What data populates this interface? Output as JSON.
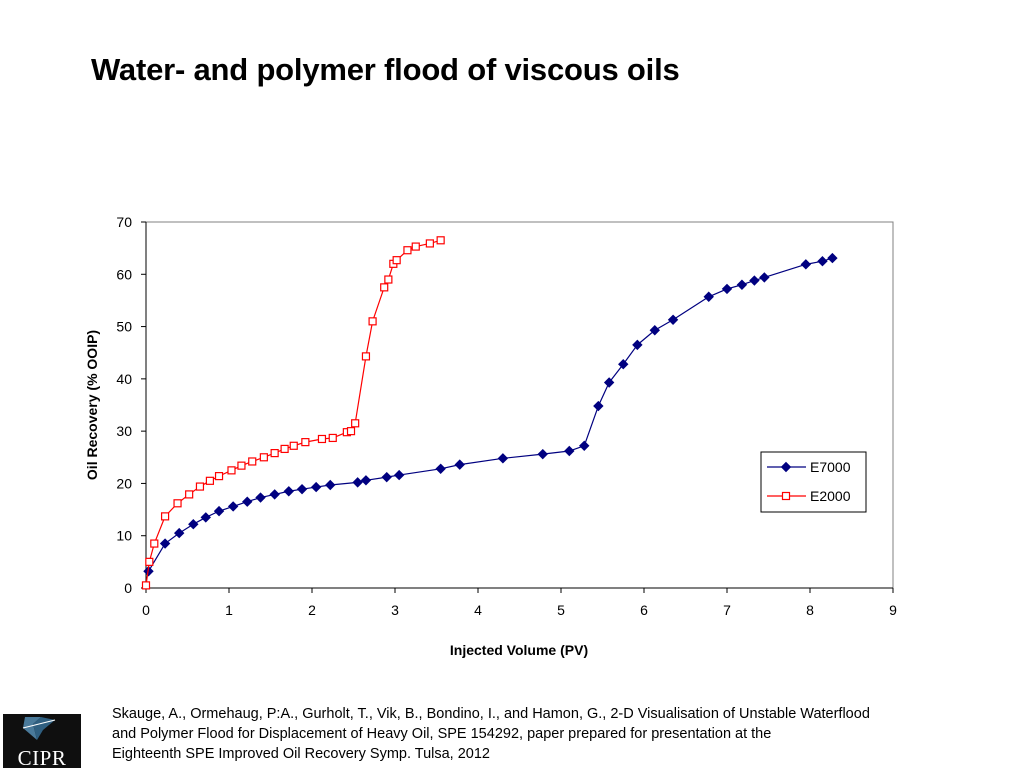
{
  "slide": {
    "title": "Water- and polymer flood of viscous oils"
  },
  "citation": {
    "lines": [
      "Skauge, A., Ormehaug, P:A., Gurholt, T., Vik, B., Bondino, I., and Hamon, G., 2-D Visualisation of Unstable Waterflood",
      "and Polymer Flood for Displacement of Heavy Oil, SPE 154292, paper prepared for presentation at the",
      "Eighteenth SPE Improved Oil Recovery Symp. Tulsa, 2012"
    ]
  },
  "logo": {
    "text": "CIPR"
  },
  "chart_data": {
    "type": "line",
    "title": "",
    "xlabel": "Injected Volume (PV)",
    "ylabel": "Oil Recovery (% OOIP)",
    "xlim": [
      0,
      9
    ],
    "ylim": [
      0,
      70
    ],
    "xticks": [
      0,
      1,
      2,
      3,
      4,
      5,
      6,
      7,
      8,
      9
    ],
    "yticks": [
      0,
      10,
      20,
      30,
      40,
      50,
      60,
      70
    ],
    "grid": false,
    "legend": "right",
    "series": [
      {
        "name": "E7000",
        "color": "#000080",
        "marker": "diamond-filled",
        "x": [
          0.03,
          0.23,
          0.4,
          0.57,
          0.72,
          0.88,
          1.05,
          1.22,
          1.38,
          1.55,
          1.72,
          1.88,
          2.05,
          2.22,
          2.55,
          2.65,
          2.9,
          3.05,
          3.55,
          3.78,
          4.3,
          4.78,
          5.1,
          5.28,
          5.45,
          5.58,
          5.75,
          5.92,
          6.13,
          6.35,
          6.78,
          7.0,
          7.18,
          7.33,
          7.45,
          7.95,
          8.15,
          8.27
        ],
        "y": [
          3.2,
          8.5,
          10.5,
          12.2,
          13.5,
          14.7,
          15.6,
          16.5,
          17.3,
          17.9,
          18.5,
          18.9,
          19.3,
          19.7,
          20.2,
          20.6,
          21.2,
          21.6,
          22.8,
          23.6,
          24.8,
          25.6,
          26.2,
          27.2,
          34.8,
          39.3,
          42.8,
          46.5,
          49.3,
          51.3,
          55.7,
          57.2,
          58.0,
          58.8,
          59.4,
          61.9,
          62.5,
          63.1
        ]
      },
      {
        "name": "E2000",
        "color": "#ff0000",
        "marker": "square-open",
        "x": [
          0.0,
          0.04,
          0.1,
          0.23,
          0.38,
          0.52,
          0.65,
          0.77,
          0.88,
          1.03,
          1.15,
          1.28,
          1.42,
          1.55,
          1.67,
          1.78,
          1.92,
          2.12,
          2.25,
          2.42,
          2.47,
          2.52,
          2.65,
          2.73,
          2.87,
          2.92,
          2.98,
          3.02,
          3.15,
          3.25,
          3.42,
          3.55
        ],
        "y": [
          0.5,
          5.0,
          8.5,
          13.7,
          16.2,
          17.9,
          19.4,
          20.5,
          21.4,
          22.5,
          23.4,
          24.2,
          25.0,
          25.8,
          26.6,
          27.2,
          27.9,
          28.5,
          28.7,
          29.8,
          30.0,
          31.5,
          44.3,
          51.0,
          57.5,
          59.0,
          62.0,
          62.7,
          64.6,
          65.3,
          65.9,
          66.5
        ]
      }
    ]
  }
}
